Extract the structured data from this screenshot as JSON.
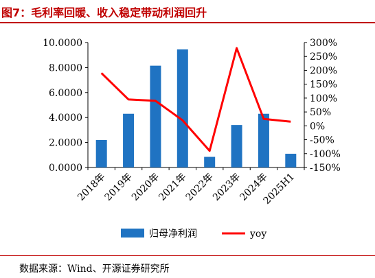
{
  "figure": {
    "title": "图7：毛利率回暖、收入稳定带动利润回升",
    "source": "数据来源：Wind、开源证券研究所"
  },
  "colors": {
    "bar": "#1f73c2",
    "line": "#ff0000",
    "title": "#c00000"
  },
  "chart_data": {
    "type": "bar",
    "categories": [
      "2018年",
      "2019年",
      "2020年",
      "2021年",
      "2022年",
      "2023年",
      "2024年",
      "2025H1"
    ],
    "series": [
      {
        "name": "归母净利润",
        "type": "bar",
        "axis": "left",
        "values": [
          2.2,
          4.3,
          8.15,
          9.45,
          0.85,
          3.4,
          4.3,
          1.1
        ]
      },
      {
        "name": "yoy",
        "type": "line",
        "axis": "right",
        "values": [
          1.9,
          0.95,
          0.9,
          0.2,
          -0.9,
          2.8,
          0.25,
          0.15
        ]
      }
    ],
    "y_left": {
      "lim": [
        0,
        10
      ],
      "ticks": [
        0,
        2,
        4,
        6,
        8,
        10
      ],
      "tick_labels": [
        "0.0000",
        "2.0000",
        "4.0000",
        "6.0000",
        "8.0000",
        "10.0000"
      ]
    },
    "y_right": {
      "lim": [
        -1.5,
        3.0
      ],
      "ticks": [
        -1.5,
        -1.0,
        -0.5,
        0,
        0.5,
        1.0,
        1.5,
        2.0,
        2.5,
        3.0
      ],
      "tick_labels": [
        "-150%",
        "-100%",
        "-50%",
        "0%",
        "50%",
        "100%",
        "150%",
        "200%",
        "250%",
        "300%"
      ]
    },
    "grid": false,
    "legend_position": "bottom"
  }
}
